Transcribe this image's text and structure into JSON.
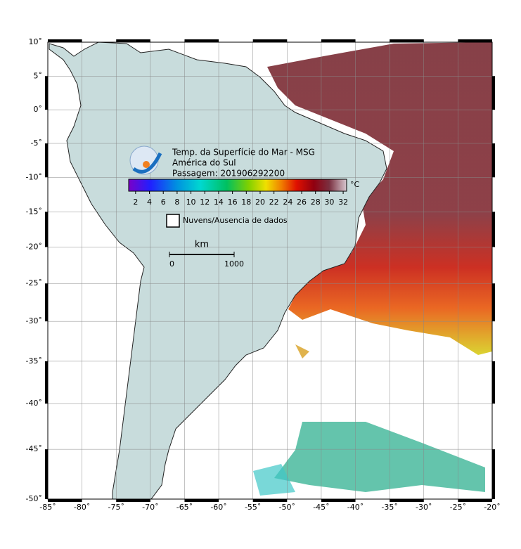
{
  "map": {
    "title_lines": [
      "Temp. da Superfície do Mar - MSG",
      "América do Sul",
      "Passagem: 201906292200"
    ],
    "lonlim": [
      -85,
      -20
    ],
    "latlim": [
      -50,
      10
    ],
    "grid": true,
    "lon_ticks": [
      {
        "value": -85,
        "label": "-85˚"
      },
      {
        "value": -80,
        "label": "-80˚"
      },
      {
        "value": -75,
        "label": "-75˚"
      },
      {
        "value": -70,
        "label": "-70˚"
      },
      {
        "value": -65,
        "label": "-65˚"
      },
      {
        "value": -60,
        "label": "-60˚"
      },
      {
        "value": -55,
        "label": "-55˚"
      },
      {
        "value": -50,
        "label": "-50˚"
      },
      {
        "value": -45,
        "label": "-45˚"
      },
      {
        "value": -40,
        "label": "-40˚"
      },
      {
        "value": -35,
        "label": "-35˚"
      },
      {
        "value": -30,
        "label": "-30˚"
      },
      {
        "value": -25,
        "label": "-25˚"
      },
      {
        "value": -20,
        "label": "-20˚"
      }
    ],
    "lat_ticks": [
      {
        "value": 10,
        "label": "10˚"
      },
      {
        "value": 5,
        "label": "5˚"
      },
      {
        "value": 0,
        "label": "0˚"
      },
      {
        "value": -5,
        "label": "-5˚"
      },
      {
        "value": -10,
        "label": "-10˚"
      },
      {
        "value": -15,
        "label": "-15˚"
      },
      {
        "value": -20,
        "label": "-20˚"
      },
      {
        "value": -25,
        "label": "-25˚"
      },
      {
        "value": -30,
        "label": "-30˚"
      },
      {
        "value": -35,
        "label": "-35˚"
      },
      {
        "value": -40,
        "label": "-40˚"
      },
      {
        "value": -45,
        "label": "-45˚"
      },
      {
        "value": -50,
        "label": "-50˚"
      }
    ],
    "colorbar": {
      "unit": "°C",
      "range": [
        1,
        32.5
      ],
      "ticks": [
        2,
        4,
        6,
        8,
        10,
        12,
        14,
        16,
        18,
        20,
        22,
        24,
        26,
        28,
        30,
        32
      ]
    },
    "legend": "Nuvens/Ausencia de dados",
    "scale_bar": {
      "unit": "km",
      "ticks": [
        0,
        1000
      ]
    }
  }
}
